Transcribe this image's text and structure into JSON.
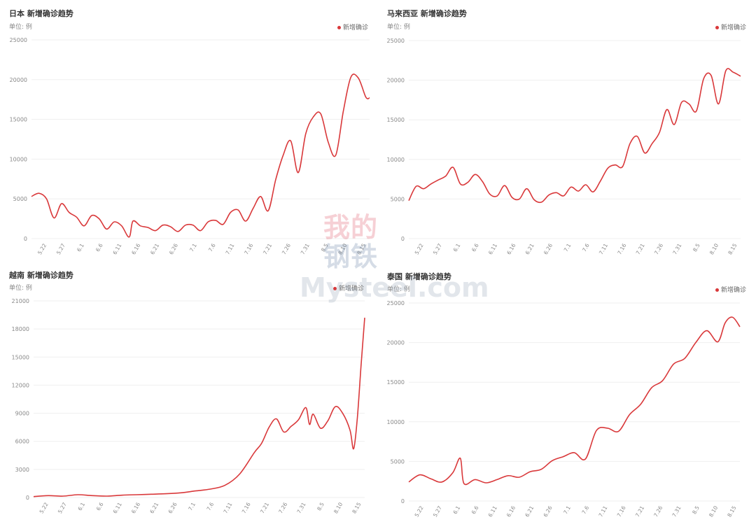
{
  "colors": {
    "series": "#d9383a",
    "grid": "#efefef",
    "axis_text": "#888888"
  },
  "watermark": {
    "cn_line1": "我的",
    "cn_line2": "钢铁",
    "en": "Mysteel.com"
  },
  "chart_data": [
    {
      "type": "line",
      "title": "日本 新增确诊趋势",
      "unit": "单位: 例",
      "legend": "新增确诊",
      "legend_position": "top-right",
      "grid": true,
      "ylim": [
        0,
        25000
      ],
      "yticks": [
        "25000",
        "20000",
        "15000",
        "10000",
        "5000",
        "0"
      ],
      "x_start": "5.18",
      "x_end": "8.16",
      "xticks": [
        "5.22",
        "5.27",
        "6.1",
        "6.6",
        "6.11",
        "6.16",
        "6.21",
        "6.26",
        "7.1",
        "7.6",
        "7.11",
        "7.16",
        "7.21",
        "7.26",
        "7.31",
        "8.5",
        "8.10",
        "8.15"
      ],
      "x": [
        "5.18",
        "5.20",
        "5.22",
        "5.24",
        "5.26",
        "5.28",
        "5.30",
        "6.1",
        "6.3",
        "6.5",
        "6.7",
        "6.9",
        "6.11",
        "6.13",
        "6.14",
        "6.16",
        "6.18",
        "6.20",
        "6.22",
        "6.24",
        "6.26",
        "6.28",
        "6.30",
        "7.2",
        "7.4",
        "7.6",
        "7.8",
        "7.10",
        "7.12",
        "7.14",
        "7.16",
        "7.18",
        "7.20",
        "7.22",
        "7.24",
        "7.26",
        "7.28",
        "7.30",
        "8.1",
        "8.3",
        "8.5",
        "8.7",
        "8.9",
        "8.11",
        "8.13",
        "8.15",
        "8.16"
      ],
      "values": [
        5300,
        5700,
        5000,
        2600,
        4400,
        3300,
        2700,
        1600,
        2900,
        2500,
        1200,
        2100,
        1600,
        200,
        2200,
        1600,
        1400,
        1000,
        1700,
        1500,
        900,
        1700,
        1700,
        1000,
        2100,
        2300,
        1800,
        3300,
        3600,
        2200,
        3800,
        5300,
        3500,
        7400,
        10500,
        12300,
        8300,
        13200,
        15300,
        15700,
        12100,
        10500,
        16000,
        20300,
        20200,
        17800,
        17700
      ]
    },
    {
      "type": "line",
      "title": "马来西亚 新增确诊趋势",
      "unit": "单位: 例",
      "legend": "新增确诊",
      "legend_position": "top-right",
      "grid": true,
      "ylim": [
        0,
        25000
      ],
      "yticks": [
        "25000",
        "20000",
        "15000",
        "10000",
        "5000",
        "0"
      ],
      "x_start": "5.18",
      "x_end": "8.16",
      "xticks": [
        "5.22",
        "5.27",
        "6.1",
        "6.6",
        "6.11",
        "6.16",
        "6.21",
        "6.26",
        "7.1",
        "7.6",
        "7.11",
        "7.16",
        "7.21",
        "7.26",
        "7.31",
        "8.5",
        "8.10",
        "8.15"
      ],
      "x": [
        "5.18",
        "5.20",
        "5.22",
        "5.24",
        "5.26",
        "5.28",
        "5.30",
        "6.1",
        "6.3",
        "6.5",
        "6.7",
        "6.9",
        "6.11",
        "6.13",
        "6.15",
        "6.17",
        "6.19",
        "6.21",
        "6.23",
        "6.25",
        "6.27",
        "6.29",
        "7.1",
        "7.3",
        "7.5",
        "7.7",
        "7.9",
        "7.11",
        "7.13",
        "7.15",
        "7.17",
        "7.19",
        "7.21",
        "7.23",
        "7.25",
        "7.27",
        "7.29",
        "7.31",
        "8.2",
        "8.4",
        "8.6",
        "8.8",
        "8.10",
        "8.12",
        "8.14",
        "8.16"
      ],
      "values": [
        4800,
        6600,
        6300,
        6900,
        7400,
        7900,
        9000,
        6900,
        7100,
        8100,
        7200,
        5600,
        5400,
        6700,
        5200,
        5000,
        6300,
        4900,
        4600,
        5500,
        5800,
        5400,
        6500,
        6000,
        6800,
        5900,
        7300,
        8900,
        9300,
        9100,
        12000,
        12900,
        10800,
        12000,
        13400,
        16300,
        14400,
        17200,
        17000,
        16100,
        20200,
        20600,
        17000,
        21200,
        21000,
        20500
      ]
    },
    {
      "type": "line",
      "title": "越南 新增确诊趋势",
      "unit": "单位: 例",
      "legend": "新增确诊",
      "legend_position": "top-right",
      "grid": true,
      "ylim": [
        0,
        21000
      ],
      "yticks": [
        "21000",
        "18000",
        "15000",
        "12000",
        "9000",
        "6000",
        "3000",
        "0"
      ],
      "x_start": "5.18",
      "x_end": "8.16",
      "xticks": [
        "5.22",
        "5.27",
        "6.1",
        "6.6",
        "6.11",
        "6.16",
        "6.21",
        "6.26",
        "7.1",
        "7.6",
        "7.11",
        "7.16",
        "7.21",
        "7.26",
        "7.31",
        "8.5",
        "8.10",
        "8.15"
      ],
      "x": [
        "5.18",
        "5.22",
        "5.26",
        "5.30",
        "6.3",
        "6.7",
        "6.11",
        "6.15",
        "6.19",
        "6.23",
        "6.27",
        "7.1",
        "7.5",
        "7.9",
        "7.13",
        "7.17",
        "7.19",
        "7.21",
        "7.23",
        "7.25",
        "7.27",
        "7.29",
        "7.31",
        "8.1",
        "8.2",
        "8.4",
        "8.6",
        "8.8",
        "8.10",
        "8.12",
        "8.13",
        "8.14",
        "8.15",
        "8.16"
      ],
      "values": [
        100,
        200,
        150,
        300,
        200,
        150,
        250,
        300,
        350,
        400,
        500,
        700,
        900,
        1300,
        2500,
        4800,
        5800,
        7500,
        8400,
        7000,
        7600,
        8300,
        9600,
        7800,
        8900,
        7400,
        8200,
        9700,
        9000,
        7200,
        5200,
        8500,
        14000,
        19200
      ]
    },
    {
      "type": "line",
      "title": "泰国 新增确诊趋势",
      "unit": "单位: 例",
      "legend": "新增确诊",
      "legend_position": "top-right",
      "grid": true,
      "ylim": [
        0,
        25000
      ],
      "yticks": [
        "25000",
        "20000",
        "15000",
        "10000",
        "5000",
        "0"
      ],
      "x_start": "5.18",
      "x_end": "8.16",
      "xticks": [
        "5.22",
        "5.27",
        "6.1",
        "6.6",
        "6.11",
        "6.16",
        "6.21",
        "6.26",
        "7.1",
        "7.6",
        "7.11",
        "7.16",
        "7.21",
        "7.26",
        "7.31",
        "8.5",
        "8.10",
        "8.15"
      ],
      "x": [
        "5.18",
        "5.21",
        "5.24",
        "5.27",
        "5.30",
        "6.1",
        "6.2",
        "6.5",
        "6.8",
        "6.11",
        "6.14",
        "6.17",
        "6.20",
        "6.23",
        "6.26",
        "6.29",
        "7.2",
        "7.5",
        "7.8",
        "7.11",
        "7.14",
        "7.17",
        "7.20",
        "7.23",
        "7.26",
        "7.29",
        "8.1",
        "8.4",
        "8.7",
        "8.10",
        "8.12",
        "8.14",
        "8.16"
      ],
      "values": [
        2400,
        3300,
        2800,
        2400,
        3600,
        5400,
        2200,
        2700,
        2300,
        2700,
        3200,
        3000,
        3700,
        4000,
        5100,
        5600,
        6100,
        5300,
        8900,
        9200,
        8800,
        10900,
        12200,
        14300,
        15200,
        17300,
        18000,
        20000,
        21500,
        20100,
        22500,
        23200,
        22000
      ]
    }
  ]
}
